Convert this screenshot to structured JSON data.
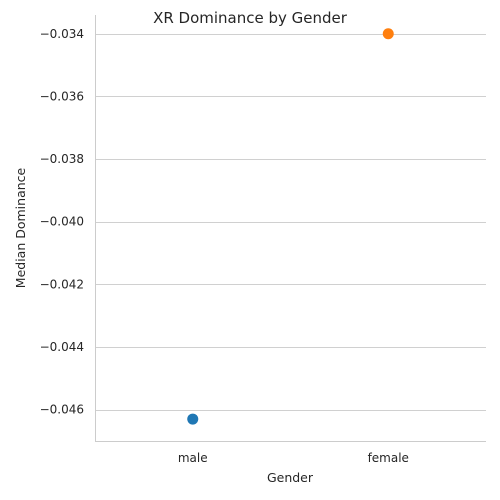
{
  "chart_data": {
    "type": "scatter",
    "title": "XR Dominance by Gender",
    "xlabel": "Gender",
    "ylabel": "Median Dominance",
    "categories": [
      "male",
      "female"
    ],
    "values": [
      -0.0463,
      -0.034
    ],
    "point_colors": [
      "#1f77b4",
      "#ff7f0e"
    ],
    "ylim": [
      -0.047,
      -0.0334
    ],
    "yticks": [
      -0.034,
      -0.036,
      -0.038,
      -0.04,
      -0.042,
      -0.044,
      -0.046
    ],
    "ytick_labels": [
      "−0.034",
      "−0.036",
      "−0.038",
      "−0.040",
      "−0.042",
      "−0.044",
      "−0.046"
    ],
    "grid": "horizontal",
    "legend": "none"
  }
}
